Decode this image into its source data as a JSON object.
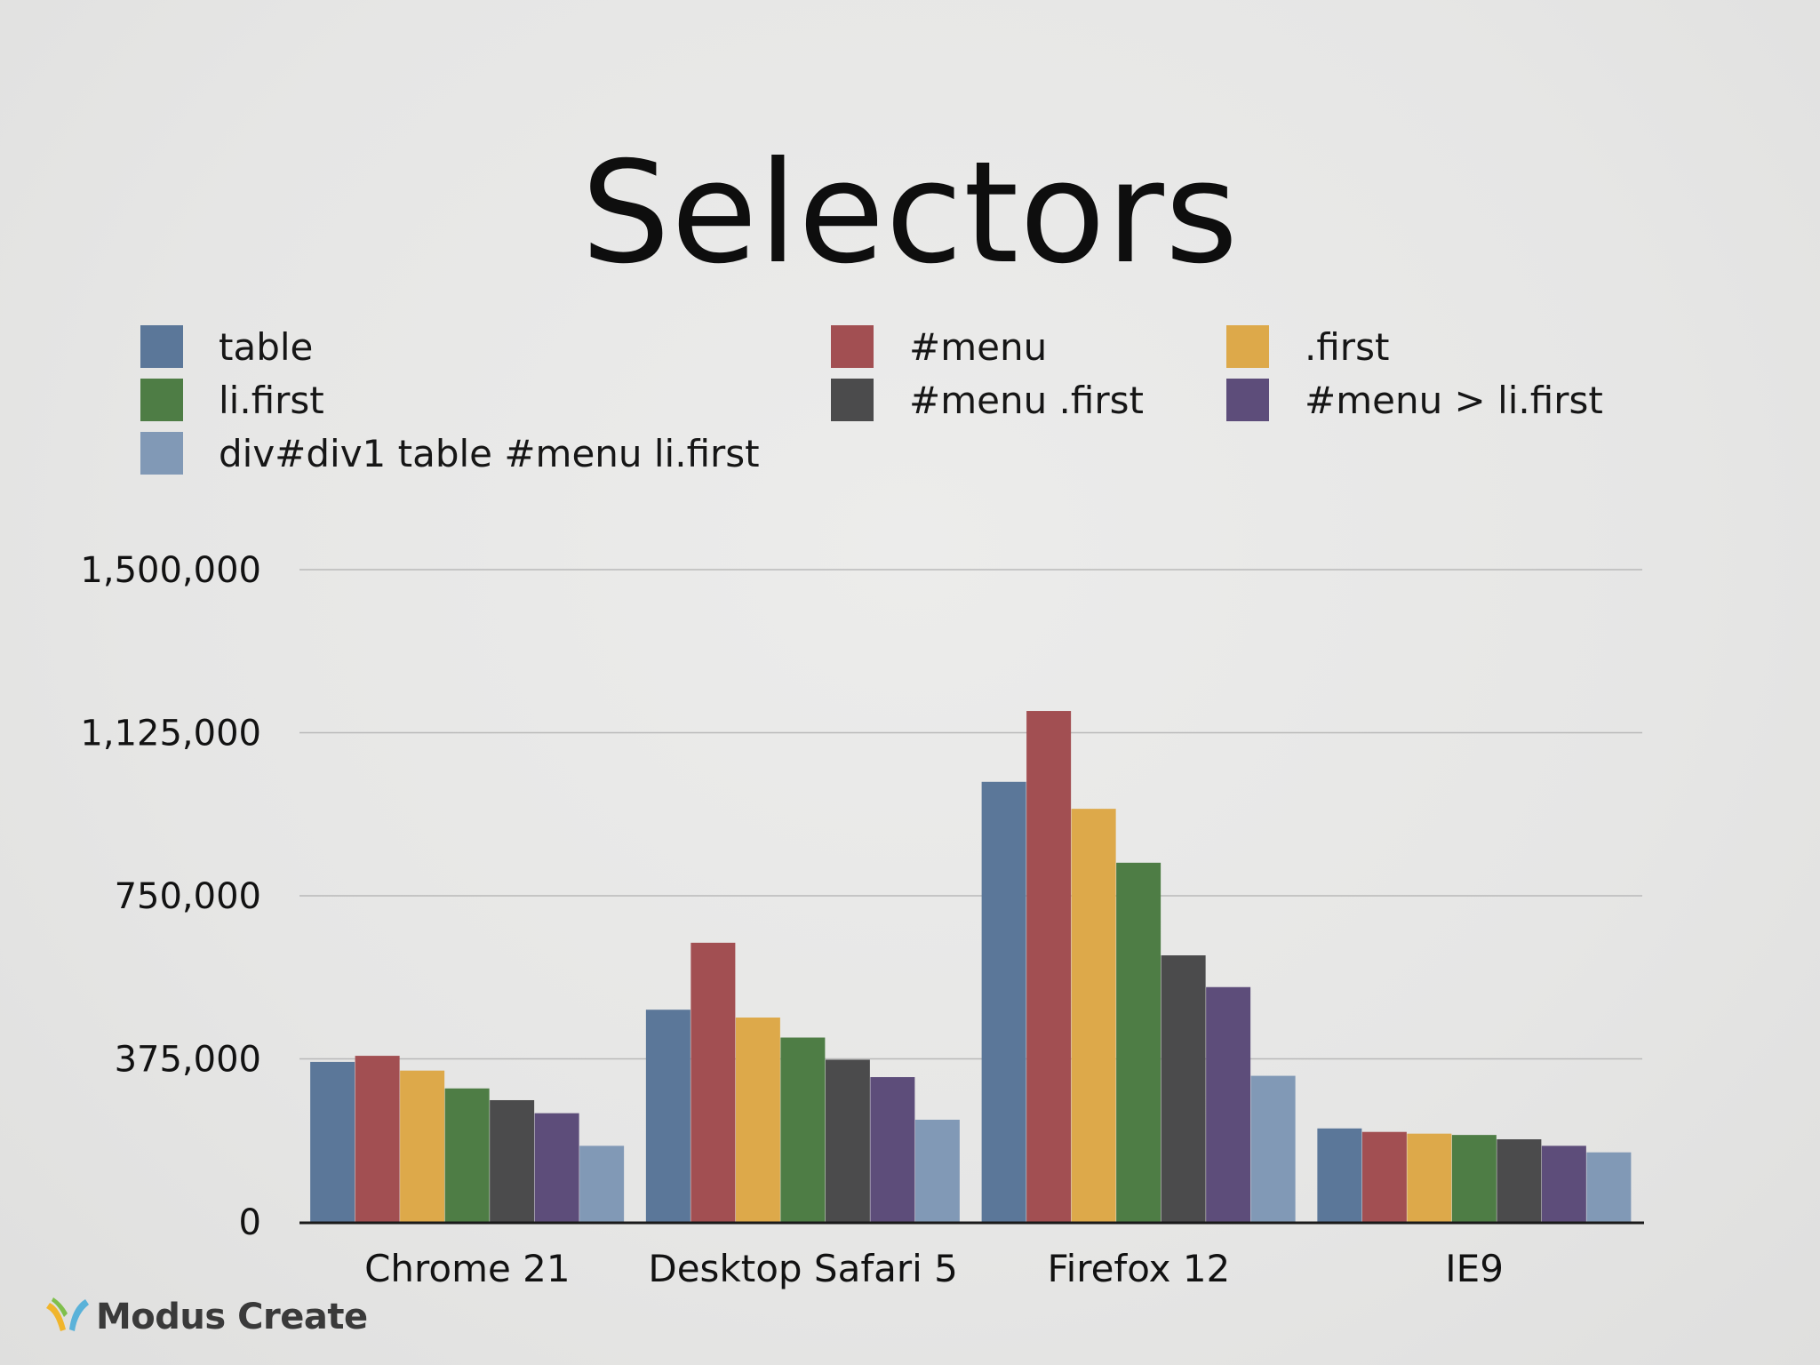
{
  "slide": {
    "title": "Selectors",
    "brand": "Modus Create",
    "brand_logo_icon": "modus-create-logo-icon"
  },
  "colors": {
    "background": "#e9e9e8",
    "gridline": "#b9b9b9",
    "axis": "#1a1a1a"
  },
  "chart_data": {
    "type": "bar",
    "title": "Selectors",
    "xlabel": "",
    "ylabel": "",
    "categories": [
      "Chrome 21",
      "Desktop Safari 5",
      "Firefox 12",
      "IE9"
    ],
    "ylim": [
      0,
      1500000
    ],
    "yticks": [
      {
        "value": 0,
        "label": "0"
      },
      {
        "value": 375000,
        "label": "375,000"
      },
      {
        "value": 750000,
        "label": "750,000"
      },
      {
        "value": 1125000,
        "label": "1,125,000"
      },
      {
        "value": 1500000,
        "label": "1,500,000"
      }
    ],
    "grid": true,
    "legend_position": "top",
    "series": [
      {
        "name": "table",
        "color": "#5b7799",
        "values": [
          368000,
          488000,
          1012000,
          215000
        ]
      },
      {
        "name": "#menu",
        "color": "#a24f52",
        "values": [
          382000,
          642000,
          1175000,
          207000
        ]
      },
      {
        "name": ".first",
        "color": "#dda94a",
        "values": [
          348000,
          470000,
          950000,
          203000
        ]
      },
      {
        "name": "li.first",
        "color": "#4e7d45",
        "values": [
          307000,
          424000,
          826000,
          200000
        ]
      },
      {
        "name": "#menu .first",
        "color": "#4b4b4c",
        "values": [
          280000,
          373000,
          613000,
          190000
        ]
      },
      {
        "name": "#menu > li.first",
        "color": "#5d4d7a",
        "values": [
          250000,
          333000,
          540000,
          175000
        ]
      },
      {
        "name": "div#div1 table #menu li.first",
        "color": "#8199b6",
        "values": [
          175000,
          235000,
          336000,
          160000
        ]
      }
    ]
  }
}
